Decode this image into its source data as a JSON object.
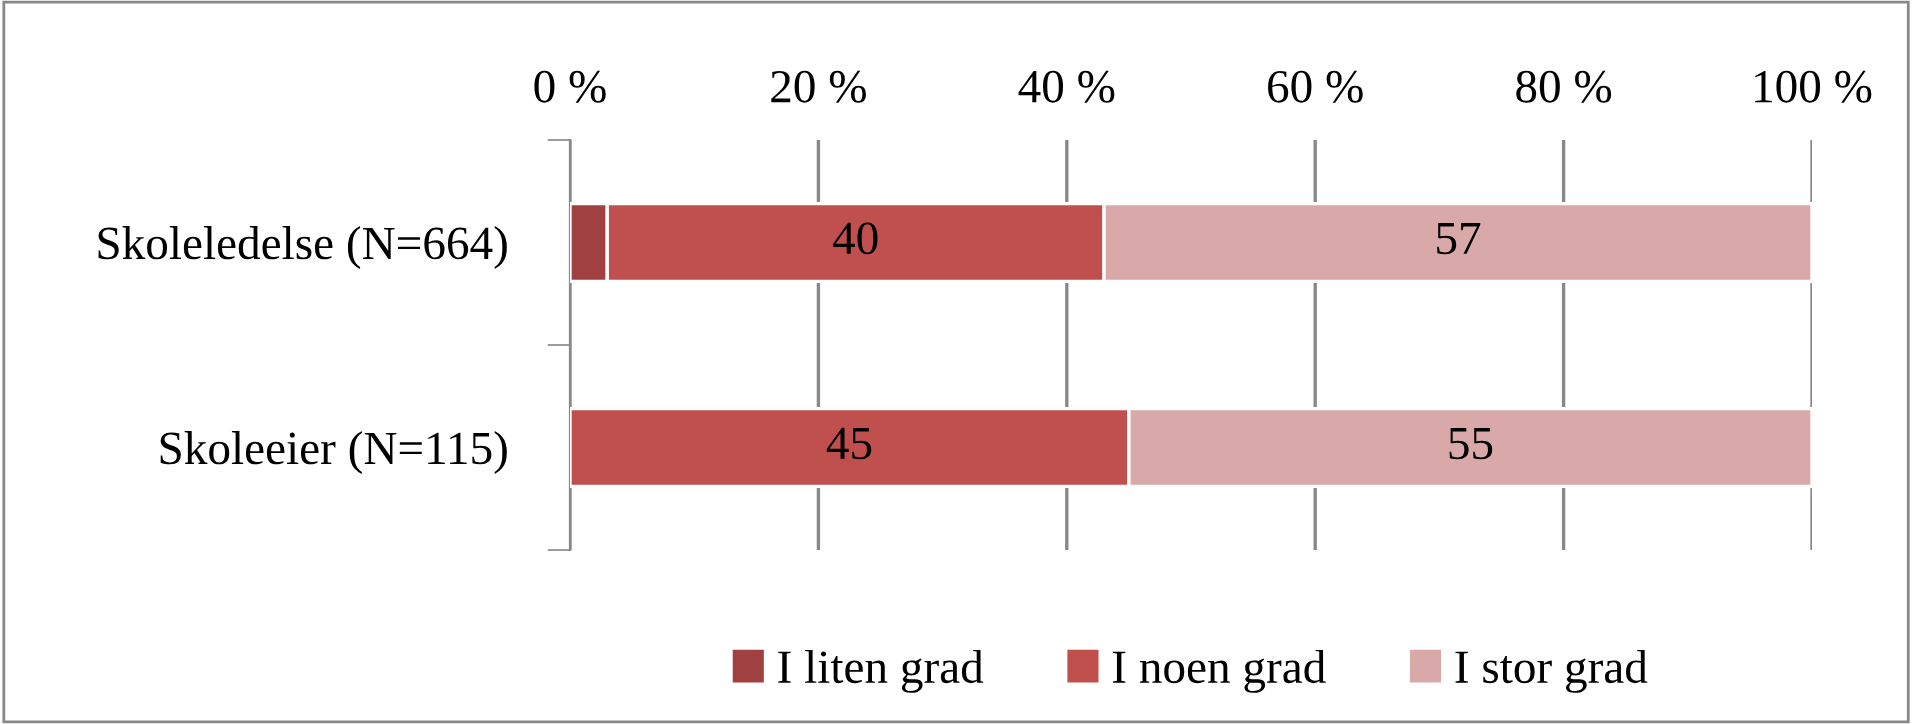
{
  "chart_data": {
    "type": "bar",
    "orientation": "horizontal",
    "stacked": true,
    "categories": [
      "Skoleledelse (N=664)",
      "Skoleeier (N=115)"
    ],
    "series": [
      {
        "name": "I liten grad",
        "color": "#a04040",
        "values": [
          3,
          0
        ],
        "value_labels": [
          null,
          null
        ]
      },
      {
        "name": "I noen grad",
        "color": "#c0504d",
        "values": [
          40,
          45
        ],
        "value_labels": [
          "40",
          "45"
        ]
      },
      {
        "name": "I stor grad",
        "color": "#d9a9a9",
        "values": [
          57,
          55
        ],
        "value_labels": [
          "57",
          "55"
        ]
      }
    ],
    "xlim": [
      0,
      100
    ],
    "xticks": [
      {
        "value": 0,
        "label": "0 %"
      },
      {
        "value": 20,
        "label": "20 %"
      },
      {
        "value": 40,
        "label": "40 %"
      },
      {
        "value": 60,
        "label": "60 %"
      },
      {
        "value": 80,
        "label": "80 %"
      },
      {
        "value": 100,
        "label": "100 %"
      }
    ],
    "grid": "x",
    "legend": "bottom"
  }
}
